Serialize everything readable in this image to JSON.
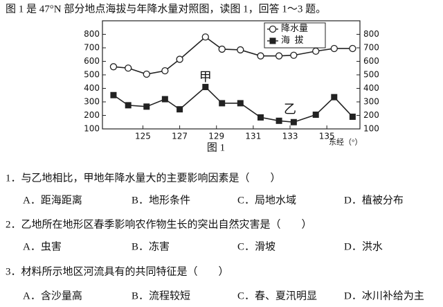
{
  "document": {
    "intro": "图 1 是 47°N 部分地点海拔与年降水量对照图，读图 1，回答 1～3 题。",
    "figure_caption": "图 1",
    "questions": [
      {
        "stem": "1．与乙地相比，甲地年降水量大的主要影响因素是（　　）",
        "options": [
          "A．距海距离",
          "B．地形条件",
          "C．局地水域",
          "D．植被分布"
        ]
      },
      {
        "stem": "2．乙地所在地形区春季影响农作物生长的突出自然灾害是（　　）",
        "options": [
          "A．虫害",
          "B．冻害",
          "C．滑坡",
          "D．洪水"
        ]
      },
      {
        "stem": "3．材料所示地区河流具有的共同特征是（　　）",
        "options": [
          "A．含沙量高",
          "B．流程较短",
          "C．春、夏汛明显",
          "D．冰川补给为主"
        ]
      }
    ]
  },
  "chart_data": {
    "type": "line",
    "x_label": "东经（°）",
    "x": [
      123.4,
      124.2,
      125.2,
      126.2,
      127.0,
      128.4,
      129.3,
      130.3,
      131.4,
      132.4,
      133.2,
      134.4,
      135.4,
      136.4
    ],
    "series": [
      {
        "name": "降水量",
        "color": "#222222",
        "marker": "circle",
        "values": [
          560,
          550,
          505,
          530,
          615,
          780,
          690,
          685,
          640,
          640,
          645,
          675,
          695,
          695
        ]
      },
      {
        "name": "海  拔",
        "color": "#222222",
        "marker": "square",
        "values": [
          350,
          275,
          265,
          320,
          245,
          410,
          290,
          290,
          185,
          160,
          150,
          205,
          335,
          190
        ]
      }
    ],
    "xlim": [
      122.8,
      136.8
    ],
    "xticks": [
      125,
      127,
      129,
      131,
      133,
      135
    ],
    "ylim": [
      100,
      900
    ],
    "yticks": [
      100,
      200,
      300,
      400,
      500,
      600,
      700,
      800
    ],
    "y2lim": [
      100,
      900
    ],
    "y2ticks": [
      100,
      200,
      300,
      400,
      500,
      600,
      700,
      800
    ],
    "annotations": [
      {
        "text": "甲",
        "x": 128.4,
        "y": 480
      },
      {
        "text": "乙",
        "x": 133.0,
        "y": 240
      }
    ],
    "legend": "top-right"
  }
}
